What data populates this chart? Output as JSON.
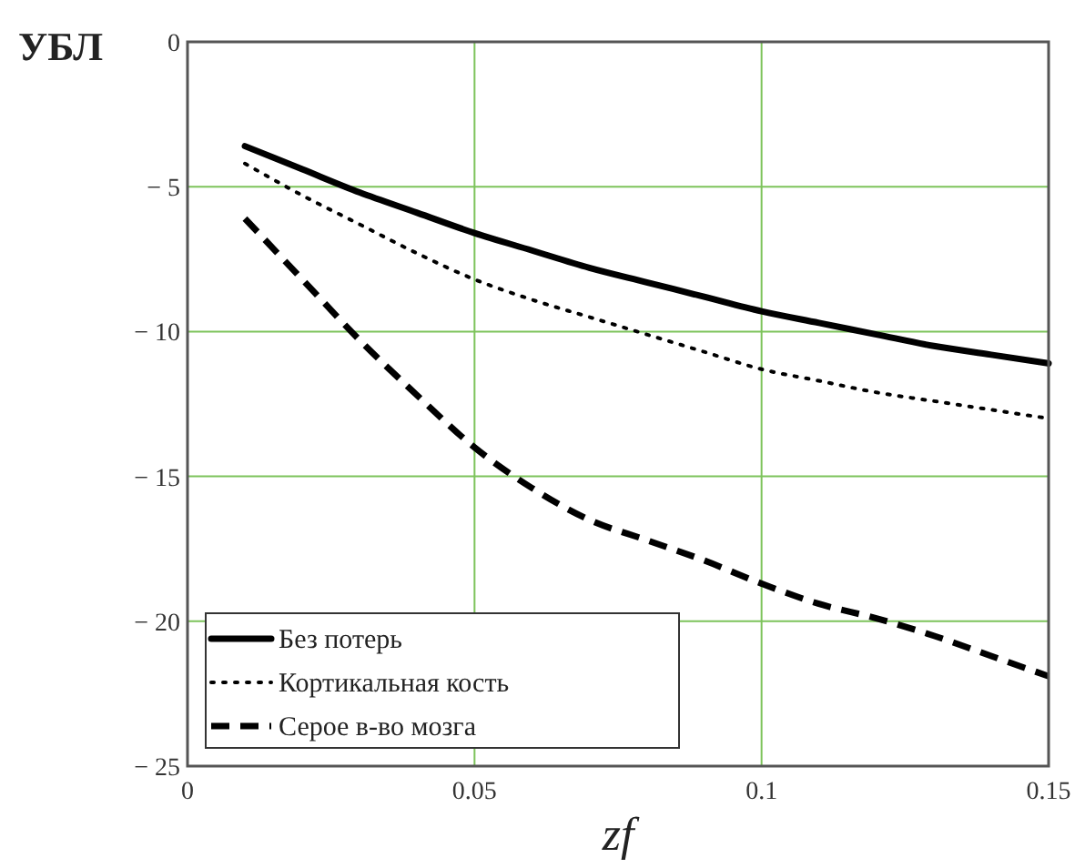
{
  "chart_data": {
    "type": "line",
    "ylabel": "УБЛ",
    "xlabel": "zf",
    "xlim": [
      0,
      0.15
    ],
    "ylim": [
      -25,
      0
    ],
    "xticks": [
      0,
      0.05,
      0.1,
      0.15
    ],
    "yticks": [
      0,
      -5,
      -10,
      -15,
      -20,
      -25
    ],
    "grid": true,
    "legend": "bottom left",
    "x": [
      0.01,
      0.02,
      0.03,
      0.04,
      0.05,
      0.06,
      0.07,
      0.08,
      0.09,
      0.1,
      0.11,
      0.12,
      0.13,
      0.14,
      0.15
    ],
    "series": [
      {
        "name": "Без потерь",
        "color": "#000000",
        "line_style": "solid",
        "values": [
          -3.6,
          -4.4,
          -5.2,
          -5.9,
          -6.6,
          -7.2,
          -7.8,
          -8.3,
          -8.8,
          -9.3,
          -9.7,
          -10.1,
          -10.5,
          -10.8,
          -11.1
        ]
      },
      {
        "name": "Кортикальная кость",
        "color": "#000000",
        "line_style": "dotted",
        "values": [
          -4.2,
          -5.3,
          -6.3,
          -7.3,
          -8.2,
          -8.9,
          -9.5,
          -10.1,
          -10.7,
          -11.3,
          -11.7,
          -12.1,
          -12.4,
          -12.7,
          -13.0
        ]
      },
      {
        "name": "Серое в-во мозга",
        "color": "#000000",
        "line_style": "dashed",
        "values": [
          -6.1,
          -8.2,
          -10.3,
          -12.2,
          -14.0,
          -15.4,
          -16.5,
          -17.2,
          -17.9,
          -18.7,
          -19.4,
          -19.9,
          -20.5,
          -21.2,
          -21.9
        ]
      }
    ]
  }
}
